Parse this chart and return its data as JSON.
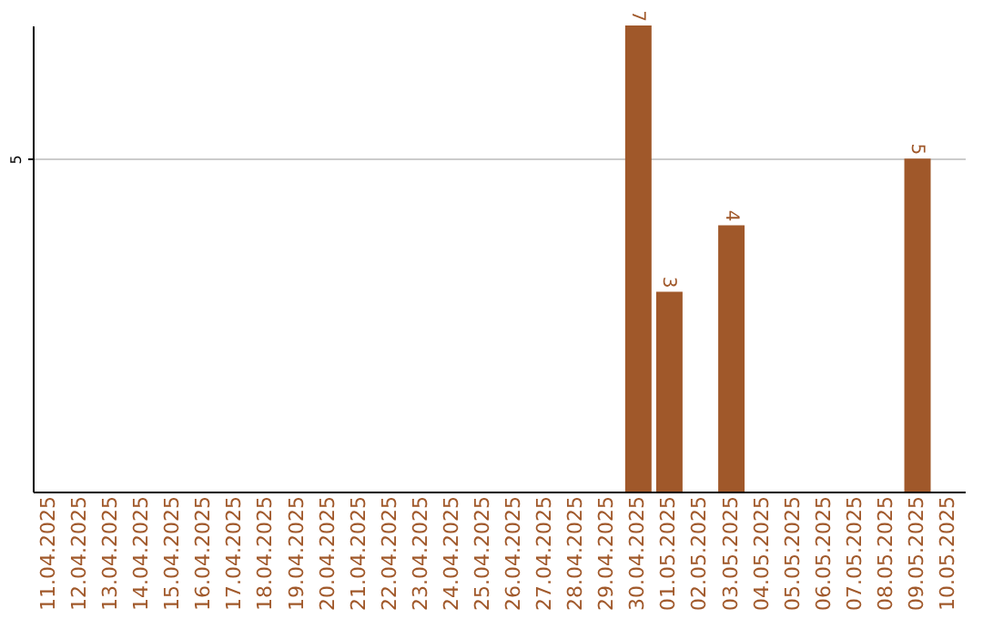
{
  "chart_data": {
    "type": "bar",
    "categories": [
      "11.04.2025",
      "12.04.2025",
      "13.04.2025",
      "14.04.2025",
      "15.04.2025",
      "16.04.2025",
      "17.04.2025",
      "18.04.2025",
      "19.04.2025",
      "20.04.2025",
      "21.04.2025",
      "22.04.2025",
      "23.04.2025",
      "24.04.2025",
      "25.04.2025",
      "26.04.2025",
      "27.04.2025",
      "28.04.2025",
      "29.04.2025",
      "30.04.2025",
      "01.05.2025",
      "02.05.2025",
      "03.05.2025",
      "04.05.2025",
      "05.05.2025",
      "06.05.2025",
      "07.05.2025",
      "08.05.2025",
      "09.05.2025",
      "10.05.2025"
    ],
    "values": [
      null,
      null,
      null,
      null,
      null,
      null,
      null,
      null,
      null,
      null,
      null,
      null,
      null,
      null,
      null,
      null,
      null,
      null,
      null,
      7,
      3,
      null,
      4,
      null,
      null,
      null,
      null,
      null,
      5,
      null
    ],
    "color": "#a0582a",
    "ylim": [
      0,
      7
    ],
    "yticks": [
      5
    ],
    "grid": "y",
    "data_labels": true
  }
}
